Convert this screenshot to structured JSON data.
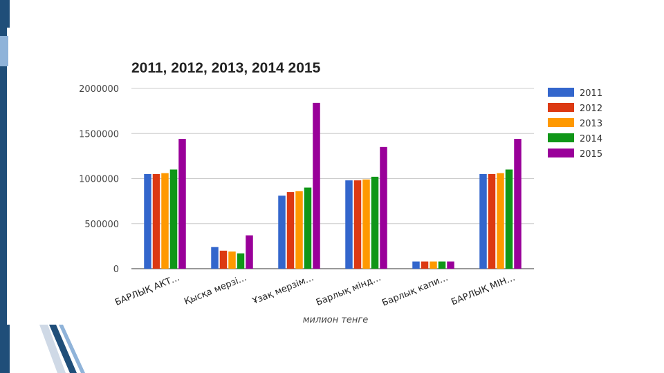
{
  "chart_data": {
    "type": "bar",
    "title": "2011, 2012, 2013, 2014 2015",
    "xlabel": "милион тенге",
    "ylabel": "",
    "ylim": [
      0,
      2000000
    ],
    "yticks": [
      0,
      500000,
      1000000,
      1500000,
      2000000
    ],
    "grid": true,
    "legend_position": "right",
    "categories": [
      "БАРЛЫҚ АКТ…",
      "Қысқа мерзі…",
      "Ұзақ мерзім…",
      "Барлық мінд…",
      "Барлық капи…",
      "БАРЛЫҚ МІН…"
    ],
    "series": [
      {
        "name": "2011",
        "color": "#3366cc",
        "values": [
          1050000,
          240000,
          810000,
          980000,
          80000,
          1050000
        ]
      },
      {
        "name": "2012",
        "color": "#dc3912",
        "values": [
          1050000,
          200000,
          850000,
          980000,
          80000,
          1050000
        ]
      },
      {
        "name": "2013",
        "color": "#ff9900",
        "values": [
          1060000,
          190000,
          860000,
          990000,
          80000,
          1060000
        ]
      },
      {
        "name": "2014",
        "color": "#109618",
        "values": [
          1100000,
          170000,
          900000,
          1020000,
          80000,
          1100000
        ]
      },
      {
        "name": "2015",
        "color": "#990099",
        "values": [
          1440000,
          370000,
          1840000,
          1350000,
          80000,
          1440000
        ]
      }
    ]
  }
}
